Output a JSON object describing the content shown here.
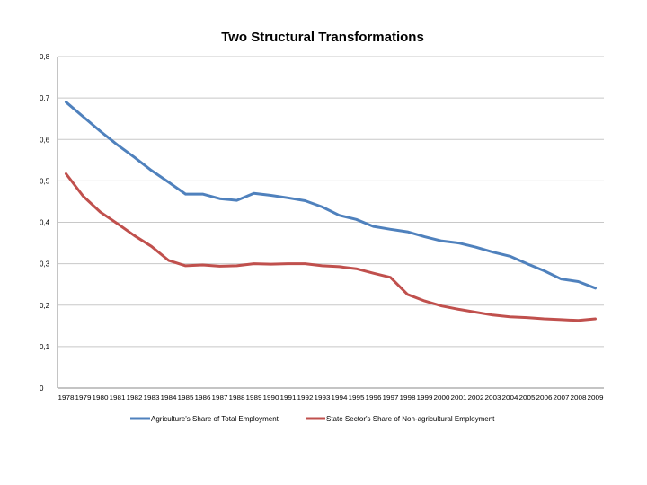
{
  "chart_data": {
    "type": "line",
    "title": "Two Structural Transformations",
    "xlabel": "",
    "ylabel": "",
    "ylim": [
      0,
      0.8
    ],
    "yticks": [
      0,
      0.1,
      0.2,
      0.3,
      0.4,
      0.5,
      0.6,
      0.7,
      0.8
    ],
    "ytick_labels": [
      "0",
      "0,1",
      "0,2",
      "0,3",
      "0,4",
      "0,5",
      "0,6",
      "0,7",
      "0,8"
    ],
    "categories": [
      "1978",
      "1979",
      "1980",
      "1981",
      "1982",
      "1983",
      "1984",
      "1985",
      "1986",
      "1987",
      "1988",
      "1989",
      "1990",
      "1991",
      "1992",
      "1993",
      "1994",
      "1995",
      "1996",
      "1997",
      "1998",
      "1999",
      "2000",
      "2001",
      "2002",
      "2003",
      "2004",
      "2005",
      "2006",
      "2007",
      "2008",
      "2009"
    ],
    "grid": true,
    "legend_position": "bottom",
    "series": [
      {
        "name": "Agriculture's Share of Total Employment",
        "color": "#4f81bd",
        "values": [
          0.69,
          0.655,
          0.62,
          0.587,
          0.557,
          0.525,
          0.497,
          0.468,
          0.468,
          0.457,
          0.453,
          0.47,
          0.465,
          0.459,
          0.452,
          0.437,
          0.417,
          0.407,
          0.39,
          0.383,
          0.377,
          0.365,
          0.355,
          0.35,
          0.34,
          0.328,
          0.318,
          0.3,
          0.283,
          0.263,
          0.257,
          0.241
        ]
      },
      {
        "name": "State Sector's Share of Non-agricultural Employment",
        "color": "#c0504d",
        "values": [
          0.517,
          0.463,
          0.425,
          0.397,
          0.368,
          0.342,
          0.308,
          0.295,
          0.297,
          0.294,
          0.295,
          0.3,
          0.299,
          0.3,
          0.3,
          0.295,
          0.293,
          0.288,
          0.277,
          0.267,
          0.226,
          0.21,
          0.198,
          0.19,
          0.183,
          0.176,
          0.172,
          0.17,
          0.167,
          0.165,
          0.163,
          0.167
        ]
      }
    ]
  }
}
